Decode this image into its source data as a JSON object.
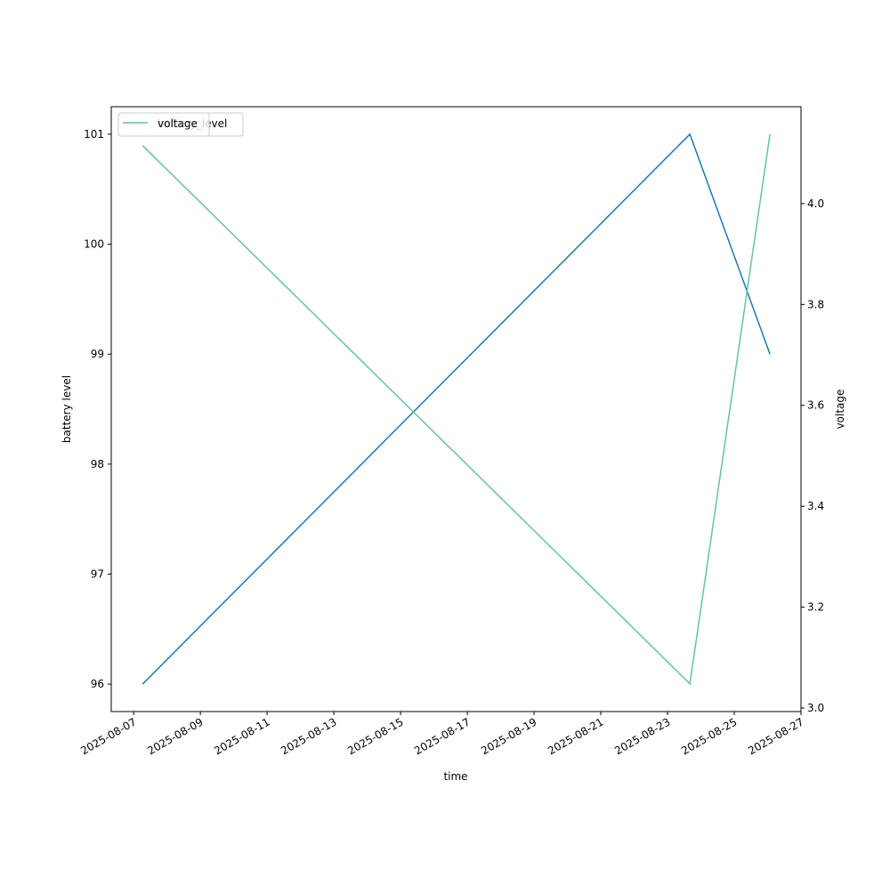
{
  "chart_data": {
    "type": "line",
    "x_label": "time",
    "y_label": "battery level",
    "y2_label": "voltage",
    "x": [
      20307.27,
      20323.67,
      20326.07
    ],
    "series": [
      {
        "name": "battery_level",
        "color": "#1f77b4",
        "values": [
          96,
          101,
          99
        ],
        "axis": "y"
      },
      {
        "name": "voltage",
        "color": "#66c2a5",
        "values": [
          4.115,
          3.048,
          4.138
        ],
        "axis": "y2"
      }
    ],
    "xlim": [
      20306.33,
      20327
    ],
    "xticks": [
      {
        "value": 20307,
        "label": "2025-08-07"
      },
      {
        "value": 20309,
        "label": "2025-08-09"
      },
      {
        "value": 20311,
        "label": "2025-08-11"
      },
      {
        "value": 20313,
        "label": "2025-08-13"
      },
      {
        "value": 20315,
        "label": "2025-08-15"
      },
      {
        "value": 20317,
        "label": "2025-08-17"
      },
      {
        "value": 20319,
        "label": "2025-08-19"
      },
      {
        "value": 20321,
        "label": "2025-08-21"
      },
      {
        "value": 20323,
        "label": "2025-08-23"
      },
      {
        "value": 20325,
        "label": "2025-08-25"
      },
      {
        "value": 20327,
        "label": "2025-08-27"
      }
    ],
    "ylim": [
      95.75,
      101.25
    ],
    "yticks": [
      96,
      97,
      98,
      99,
      100,
      101
    ],
    "y2lim": [
      2.993,
      4.192
    ],
    "y2ticks": [
      {
        "value": 3.0,
        "label": "3.0"
      },
      3.2,
      3.4,
      3.6,
      3.8,
      {
        "value": 4.0,
        "label": "4.0"
      }
    ],
    "legend": "upper left",
    "grid": false
  }
}
